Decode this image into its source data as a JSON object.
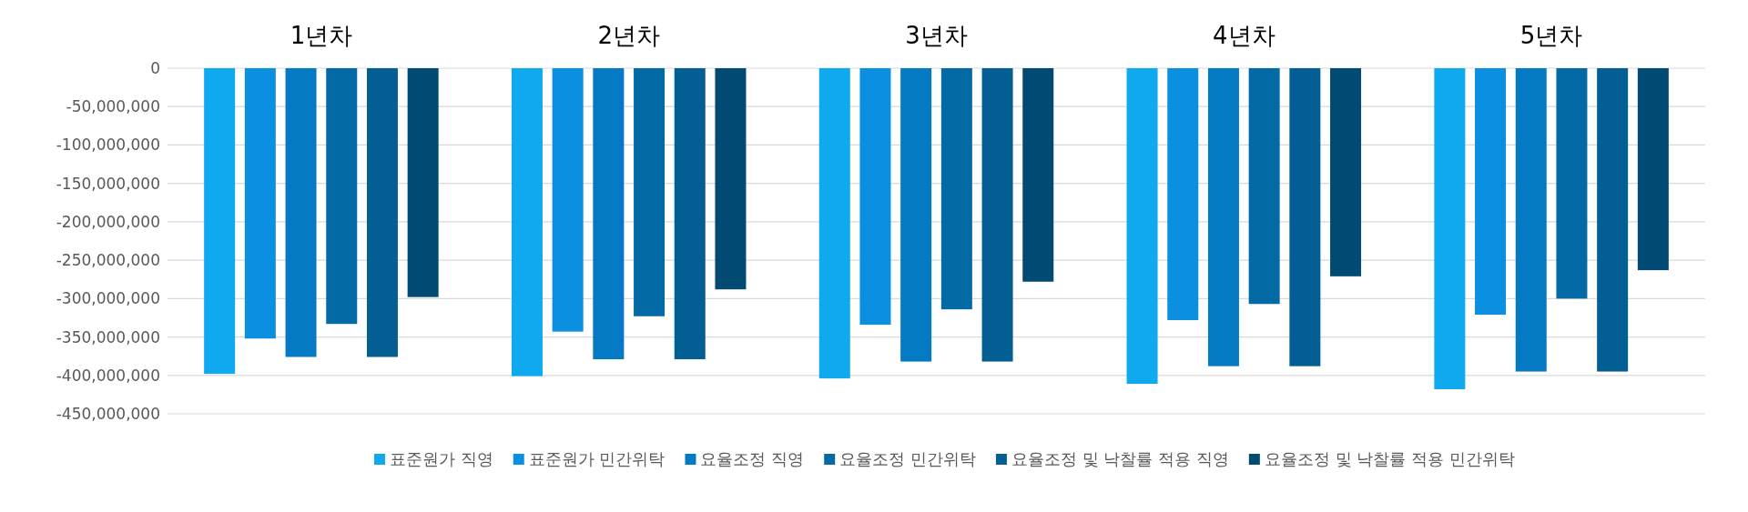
{
  "chart_data": {
    "type": "bar",
    "categories": [
      "1년차",
      "2년차",
      "3년차",
      "4년차",
      "5년차"
    ],
    "series": [
      {
        "name": "표준원가 직영",
        "color": "#0fa9f0",
        "values": [
          -398000000,
          -401000000,
          -404000000,
          -411000000,
          -418000000
        ]
      },
      {
        "name": "표준원가 민간위탁",
        "color": "#0b8fe0",
        "values": [
          -352000000,
          -343000000,
          -334000000,
          -328000000,
          -321000000
        ]
      },
      {
        "name": "요율조정 직영",
        "color": "#047ac4",
        "values": [
          -376000000,
          -379000000,
          -382000000,
          -388000000,
          -395000000
        ]
      },
      {
        "name": "요율조정 민간위탁",
        "color": "#036aa6",
        "values": [
          -333000000,
          -323000000,
          -314000000,
          -307000000,
          -300000000
        ]
      },
      {
        "name": "요율조정 및 낙찰률 적용 직영",
        "color": "#035e94",
        "values": [
          -376000000,
          -379000000,
          -382000000,
          -388000000,
          -395000000
        ]
      },
      {
        "name": "요율조정 및 낙찰률 적용 민간위탁",
        "color": "#004a73",
        "values": [
          -298000000,
          -288000000,
          -278000000,
          -271000000,
          -263000000
        ]
      }
    ],
    "ylim": [
      -450000000,
      0
    ],
    "yticks": [
      0,
      {
        "value": -50000000,
        "label": "-50,000,000"
      },
      {
        "value": -100000000,
        "label": "-100,000,000"
      },
      {
        "value": -150000000,
        "label": "-150,000,000"
      },
      {
        "value": -200000000,
        "label": "-200,000,000"
      },
      {
        "value": -250000000,
        "label": "-250,000,000"
      },
      {
        "value": -300000000,
        "label": "-300,000,000"
      },
      {
        "value": -350000000,
        "label": "-350,000,000"
      },
      {
        "value": -400000000,
        "label": "-400,000,000"
      },
      {
        "value": -450000000,
        "label": "-450,000,000"
      }
    ],
    "grid": "y",
    "legend": "bottom"
  }
}
